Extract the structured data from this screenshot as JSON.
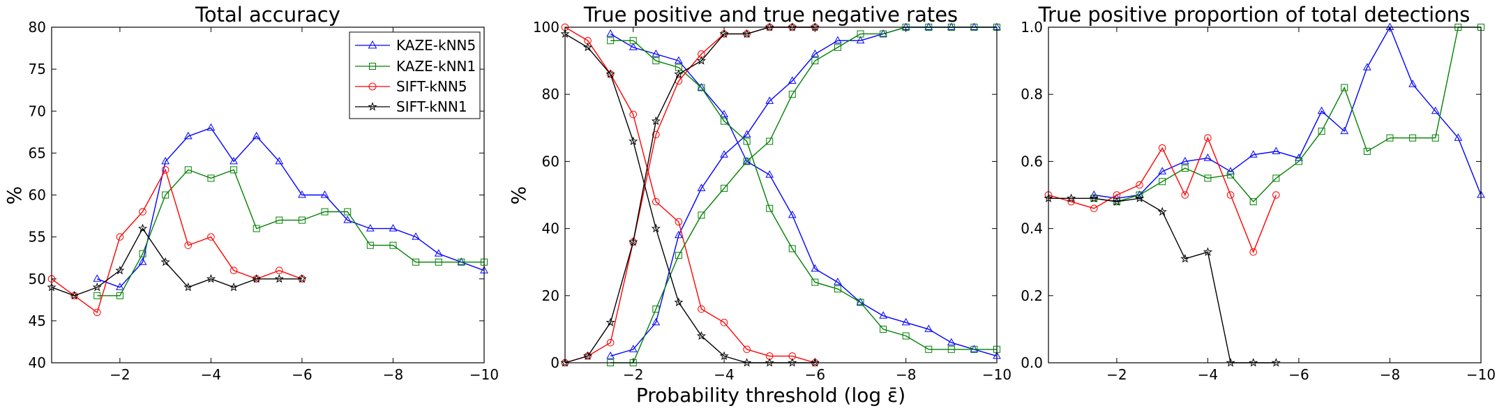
{
  "figure": {
    "xlabel": "Probability threshold (log ε̄)"
  },
  "chart_data": [
    {
      "type": "line",
      "title": "Total accuracy",
      "ylabel": "%",
      "xlim": [
        -0.5,
        -10
      ],
      "ylim": [
        40,
        80
      ],
      "xticks": [
        -2,
        -4,
        -6,
        -8,
        -10
      ],
      "xtick_labels": [
        "−2",
        "−4",
        "−6",
        "−8",
        "−10"
      ],
      "yticks": [
        40,
        45,
        50,
        55,
        60,
        65,
        70,
        75,
        80
      ],
      "ytick_labels": [
        "40",
        "45",
        "50",
        "55",
        "60",
        "65",
        "70",
        "75",
        "80"
      ],
      "legend": "top-right",
      "series": [
        {
          "name": "KAZE-kNN5",
          "color": "#0000ff",
          "marker": "triangle",
          "x": [
            -1.5,
            -2,
            -2.5,
            -3,
            -3.5,
            -4,
            -4.5,
            -5,
            -5.5,
            -6,
            -6.5,
            -7,
            -7.5,
            -8,
            -8.5,
            -9,
            -9.5,
            -10
          ],
          "y": [
            50,
            49,
            52,
            64,
            67,
            68,
            64,
            67,
            64,
            60,
            60,
            57,
            56,
            56,
            55,
            53,
            52,
            51
          ]
        },
        {
          "name": "KAZE-kNN1",
          "color": "#008000",
          "marker": "square",
          "x": [
            -1.5,
            -2,
            -2.5,
            -3,
            -3.5,
            -4,
            -4.5,
            -5,
            -5.5,
            -6,
            -6.5,
            -7,
            -7.5,
            -8,
            -8.5,
            -9,
            -9.5,
            -10
          ],
          "y": [
            48,
            48,
            53,
            60,
            63,
            62,
            63,
            56,
            57,
            57,
            58,
            58,
            54,
            54,
            52,
            52,
            52,
            52
          ]
        },
        {
          "name": "SIFT-kNN5",
          "color": "#ff0000",
          "marker": "circle",
          "x": [
            -0.5,
            -1,
            -1.5,
            -2,
            -2.5,
            -3,
            -3.5,
            -4,
            -4.5,
            -5,
            -5.5,
            -6
          ],
          "y": [
            50,
            48,
            46,
            55,
            58,
            63,
            54,
            55,
            51,
            50,
            51,
            50
          ]
        },
        {
          "name": "SIFT-kNN1",
          "color": "#000000",
          "marker": "star",
          "x": [
            -0.5,
            -1,
            -1.5,
            -2,
            -2.5,
            -3,
            -3.5,
            -4,
            -4.5,
            -5,
            -5.5,
            -6
          ],
          "y": [
            49,
            48,
            49,
            51,
            56,
            52,
            49,
            50,
            49,
            50,
            50,
            50
          ]
        }
      ]
    },
    {
      "type": "line",
      "title": "True positive and true negative rates",
      "ylabel": "%",
      "xlim": [
        -0.5,
        -10
      ],
      "ylim": [
        0,
        100
      ],
      "xticks": [
        -2,
        -4,
        -6,
        -8,
        -10
      ],
      "xtick_labels": [
        "−2",
        "−4",
        "−6",
        "−8",
        "−10"
      ],
      "yticks": [
        0,
        20,
        40,
        60,
        80,
        100
      ],
      "ytick_labels": [
        "0",
        "20",
        "40",
        "60",
        "80",
        "100"
      ],
      "series": [
        {
          "name": "KAZE-kNN5",
          "color": "#0000ff",
          "marker": "triangle",
          "x": [
            -1.5,
            -2,
            -2.5,
            -3,
            -3.5,
            -4,
            -4.5,
            -5,
            -5.5,
            -6,
            -6.5,
            -7,
            -7.5,
            -8,
            -8.5,
            -9,
            -9.5,
            -10
          ],
          "y": [
            2,
            4,
            12,
            38,
            52,
            62,
            68,
            78,
            84,
            92,
            96,
            96,
            98,
            100,
            100,
            100,
            100,
            100
          ]
        },
        {
          "name": "KAZE-kNN5",
          "color": "#0000ff",
          "marker": "triangle",
          "x": [
            -1.5,
            -2,
            -2.5,
            -3,
            -3.5,
            -4,
            -4.5,
            -5,
            -5.5,
            -6,
            -6.5,
            -7,
            -7.5,
            -8,
            -8.5,
            -9,
            -9.5,
            -10
          ],
          "y": [
            98,
            94,
            92,
            90,
            82,
            74,
            60,
            56,
            44,
            28,
            24,
            18,
            14,
            12,
            10,
            6,
            4,
            2
          ]
        },
        {
          "name": "KAZE-kNN1",
          "color": "#008000",
          "marker": "square",
          "x": [
            -1.5,
            -2,
            -2.5,
            -3,
            -3.5,
            -4,
            -4.5,
            -5,
            -5.5,
            -6,
            -6.5,
            -7,
            -7.5,
            -8,
            -8.5,
            -9,
            -9.5,
            -10
          ],
          "y": [
            0,
            0,
            16,
            32,
            44,
            52,
            60,
            66,
            80,
            90,
            94,
            98,
            98,
            100,
            100,
            100,
            100,
            100
          ]
        },
        {
          "name": "KAZE-kNN1",
          "color": "#008000",
          "marker": "square",
          "x": [
            -1.5,
            -2,
            -2.5,
            -3,
            -3.5,
            -4,
            -4.5,
            -5,
            -5.5,
            -6,
            -6.5,
            -7,
            -7.5,
            -8,
            -8.5,
            -9,
            -9.5,
            -10
          ],
          "y": [
            96,
            96,
            90,
            88,
            82,
            72,
            66,
            46,
            34,
            24,
            22,
            18,
            10,
            8,
            4,
            4,
            4,
            4
          ]
        },
        {
          "name": "SIFT-kNN5",
          "color": "#ff0000",
          "marker": "circle",
          "x": [
            -0.5,
            -1,
            -1.5,
            -2,
            -2.5,
            -3,
            -3.5,
            -4,
            -4.5,
            -5,
            -5.5,
            -6
          ],
          "y": [
            0,
            2,
            6,
            36,
            68,
            84,
            92,
            98,
            98,
            100,
            100,
            100
          ]
        },
        {
          "name": "SIFT-kNN5",
          "color": "#ff0000",
          "marker": "circle",
          "x": [
            -0.5,
            -1,
            -1.5,
            -2,
            -2.5,
            -3,
            -3.5,
            -4,
            -4.5,
            -5,
            -5.5,
            -6
          ],
          "y": [
            100,
            96,
            86,
            74,
            48,
            42,
            16,
            12,
            4,
            2,
            2,
            0
          ]
        },
        {
          "name": "SIFT-kNN1",
          "color": "#000000",
          "marker": "star",
          "x": [
            -0.5,
            -1,
            -1.5,
            -2,
            -2.5,
            -3,
            -3.5,
            -4,
            -4.5,
            -5,
            -5.5,
            -6
          ],
          "y": [
            0,
            2,
            12,
            36,
            72,
            86,
            90,
            98,
            98,
            100,
            100,
            100
          ]
        },
        {
          "name": "SIFT-kNN1",
          "color": "#000000",
          "marker": "star",
          "x": [
            -0.5,
            -1,
            -1.5,
            -2,
            -2.5,
            -3,
            -3.5,
            -4,
            -4.5,
            -5,
            -5.5,
            -6
          ],
          "y": [
            98,
            94,
            86,
            66,
            40,
            18,
            8,
            2,
            0,
            0,
            0,
            0
          ]
        }
      ]
    },
    {
      "type": "line",
      "title": "True positive proportion of total detections",
      "ylabel": "",
      "xlim": [
        -0.5,
        -10
      ],
      "ylim": [
        0,
        1
      ],
      "xticks": [
        -2,
        -4,
        -6,
        -8,
        -10
      ],
      "xtick_labels": [
        "−2",
        "−4",
        "−6",
        "−8",
        "−10"
      ],
      "yticks": [
        0,
        0.2,
        0.4,
        0.6,
        0.8,
        1.0
      ],
      "ytick_labels": [
        "0.0",
        "0.2",
        "0.4",
        "0.6",
        "0.8",
        "1.0"
      ],
      "series": [
        {
          "name": "KAZE-kNN5",
          "color": "#0000ff",
          "marker": "triangle",
          "x": [
            -1.5,
            -2,
            -2.5,
            -3,
            -3.5,
            -4,
            -4.5,
            -5,
            -5.5,
            -6,
            -6.5,
            -7,
            -7.5,
            -8,
            -8.5,
            -9,
            -9.5,
            -10
          ],
          "y": [
            0.5,
            0.49,
            0.5,
            0.57,
            0.6,
            0.61,
            0.57,
            0.62,
            0.63,
            0.61,
            0.75,
            0.69,
            0.88,
            1.0,
            0.83,
            0.75,
            0.67,
            0.5
          ]
        },
        {
          "name": "KAZE-kNN1",
          "color": "#008000",
          "marker": "square",
          "x": [
            -1.5,
            -2,
            -2.5,
            -3,
            -3.5,
            -4,
            -4.5,
            -5,
            -5.5,
            -6,
            -6.5,
            -7,
            -7.5,
            -8,
            -8.5,
            -9,
            -9.5,
            -10
          ],
          "y": [
            0.49,
            0.48,
            0.5,
            0.54,
            0.58,
            0.55,
            0.56,
            0.48,
            0.55,
            0.6,
            0.69,
            0.82,
            0.63,
            0.67,
            0.67,
            0.67,
            1.0,
            1.0
          ]
        },
        {
          "name": "SIFT-kNN5",
          "color": "#ff0000",
          "marker": "circle",
          "x": [
            -0.5,
            -1,
            -1.5,
            -2,
            -2.5,
            -3,
            -3.5,
            -4,
            -4.5,
            -5,
            -5.5
          ],
          "y": [
            0.5,
            0.48,
            0.46,
            0.5,
            0.53,
            0.64,
            0.5,
            0.67,
            0.5,
            0.33,
            0.5
          ]
        },
        {
          "name": "SIFT-kNN1",
          "color": "#000000",
          "marker": "star",
          "x": [
            -0.5,
            -1,
            -1.5,
            -2,
            -2.5,
            -3,
            -3.5,
            -4,
            -4.5,
            -5,
            -5.5
          ],
          "y": [
            0.49,
            0.49,
            0.49,
            0.48,
            0.49,
            0.45,
            0.31,
            0.33,
            0.0,
            0.0,
            0.0
          ]
        }
      ]
    }
  ]
}
